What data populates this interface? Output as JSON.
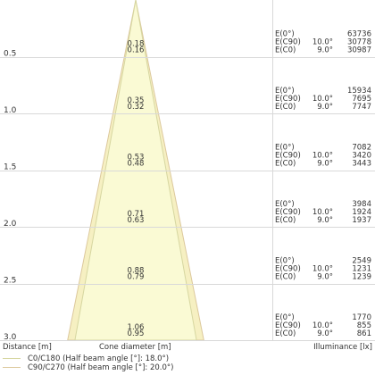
{
  "colors": {
    "c0_line": "#d6d6a0",
    "c0_fill": "#fbfbd6",
    "c90_line": "#dcc89c",
    "c90_fill": "#f6f0c2",
    "grid": "#d9d9d9"
  },
  "distance_max": 3.0,
  "rows": [
    {
      "distance": "0.5",
      "d_c0": "0.18",
      "d_c90": "0.16",
      "e0_label": "E(0°)",
      "e0_value": "63736",
      "e90_label": "E(C90)",
      "e90_angle": "10.0°",
      "e90_value": "30778",
      "ec0_label": "E(C0)",
      "ec0_angle": "9.0°",
      "ec0_value": "30987"
    },
    {
      "distance": "1.0",
      "d_c0": "0.35",
      "d_c90": "0.32",
      "e0_label": "E(0°)",
      "e0_value": "15934",
      "e90_label": "E(C90)",
      "e90_angle": "10.0°",
      "e90_value": "7695",
      "ec0_label": "E(C0)",
      "ec0_angle": "9.0°",
      "ec0_value": "7747"
    },
    {
      "distance": "1.5",
      "d_c0": "0.53",
      "d_c90": "0.48",
      "e0_label": "E(0°)",
      "e0_value": "7082",
      "e90_label": "E(C90)",
      "e90_angle": "10.0°",
      "e90_value": "3420",
      "ec0_label": "E(C0)",
      "ec0_angle": "9.0°",
      "ec0_value": "3443"
    },
    {
      "distance": "2.0",
      "d_c0": "0.71",
      "d_c90": "0.63",
      "e0_label": "E(0°)",
      "e0_value": "3984",
      "e90_label": "E(C90)",
      "e90_angle": "10.0°",
      "e90_value": "1924",
      "ec0_label": "E(C0)",
      "ec0_angle": "9.0°",
      "ec0_value": "1937"
    },
    {
      "distance": "2.5",
      "d_c0": "0.88",
      "d_c90": "0.79",
      "e0_label": "E(0°)",
      "e0_value": "2549",
      "e90_label": "E(C90)",
      "e90_angle": "10.0°",
      "e90_value": "1231",
      "ec0_label": "E(C0)",
      "ec0_angle": "9.0°",
      "ec0_value": "1239"
    },
    {
      "distance": "3.0",
      "d_c0": "1.06",
      "d_c90": "0.95",
      "e0_label": "E(0°)",
      "e0_value": "1770",
      "e90_label": "E(C90)",
      "e90_angle": "10.0°",
      "e90_value": "855",
      "ec0_label": "E(C0)",
      "ec0_angle": "9.0°",
      "ec0_value": "861"
    }
  ],
  "footer": {
    "distance_label": "Distance [m]",
    "cone_label": "Cone diameter [m]",
    "illuminance_label": "Illuminance [lx]"
  },
  "legend": {
    "c0": "C0/C180 (Half beam angle [°]: 18.0°)",
    "c90": "C90/C270 (Half beam angle [°]: 20.0°)",
    "c0_half_angle_deg": 18.0,
    "c90_half_angle_deg": 20.0
  }
}
